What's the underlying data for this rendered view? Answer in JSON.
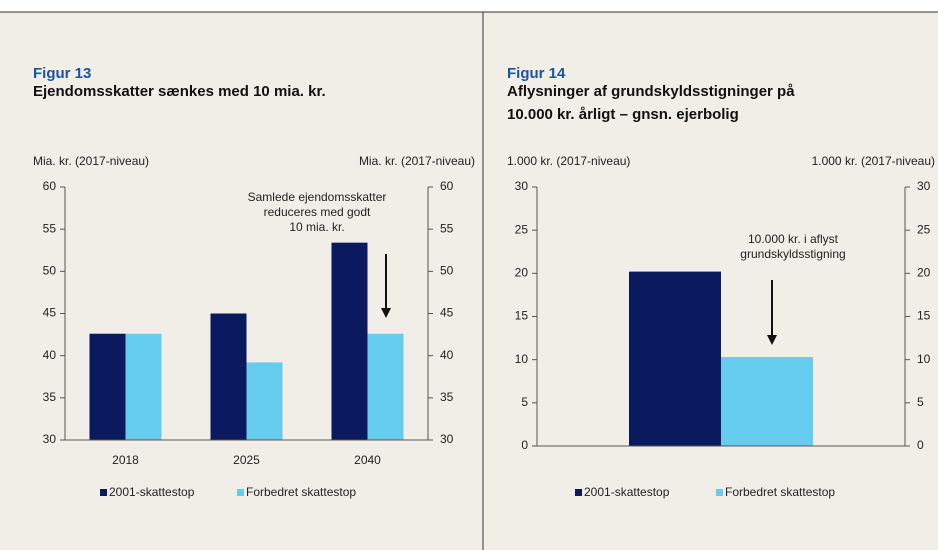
{
  "chart_data": [
    {
      "type": "bar",
      "figure": "Figur 13",
      "title": [
        "Ejendomsskatter sænkes med 10 mia. kr."
      ],
      "y_label": "Mia. kr. (2017-niveau)",
      "y2_label": "Mia. kr. (2017-niveau)",
      "categories": [
        "2018",
        "2025",
        "2040"
      ],
      "series": [
        {
          "name": "2001-skattestop",
          "color": "#0b1a5e",
          "values": [
            42.6,
            45.0,
            53.4
          ]
        },
        {
          "name": "Forbedret skattestop",
          "color": "#66ccee",
          "values": [
            42.6,
            39.2,
            42.6
          ]
        }
      ],
      "ylim": [
        30,
        60
      ],
      "yticks": [
        30,
        35,
        40,
        45,
        50,
        55,
        60
      ],
      "y2lim": [
        30,
        60
      ],
      "y2ticks": [
        30,
        35,
        40,
        45,
        50,
        55,
        60
      ],
      "annotation": [
        "Samlede ejendomsskatter",
        "reduceres med godt",
        "10 mia. kr."
      ]
    },
    {
      "type": "bar",
      "figure": "Figur 14",
      "title": [
        "Aflysninger af grundskyldsstigninger på",
        "10.000 kr. årligt – gnsn. ejerbolig"
      ],
      "y_label": "1.000 kr. (2017-niveau)",
      "y2_label": "1.000 kr. (2017-niveau)",
      "categories": [
        null
      ],
      "series": [
        {
          "name": "2001-skattestop",
          "color": "#0b1a5e",
          "values": [
            20.2
          ]
        },
        {
          "name": "Forbedret skattestop",
          "color": "#66ccee",
          "values": [
            10.3
          ]
        }
      ],
      "ylim": [
        0,
        30
      ],
      "yticks": [
        0,
        5,
        10,
        15,
        20,
        25,
        30
      ],
      "y2lim": [
        0,
        30
      ],
      "y2ticks": [
        0,
        5,
        10,
        15,
        20,
        25,
        30
      ],
      "annotation": [
        "10.000 kr. i aflyst",
        "grundskyldsstigning"
      ]
    }
  ]
}
